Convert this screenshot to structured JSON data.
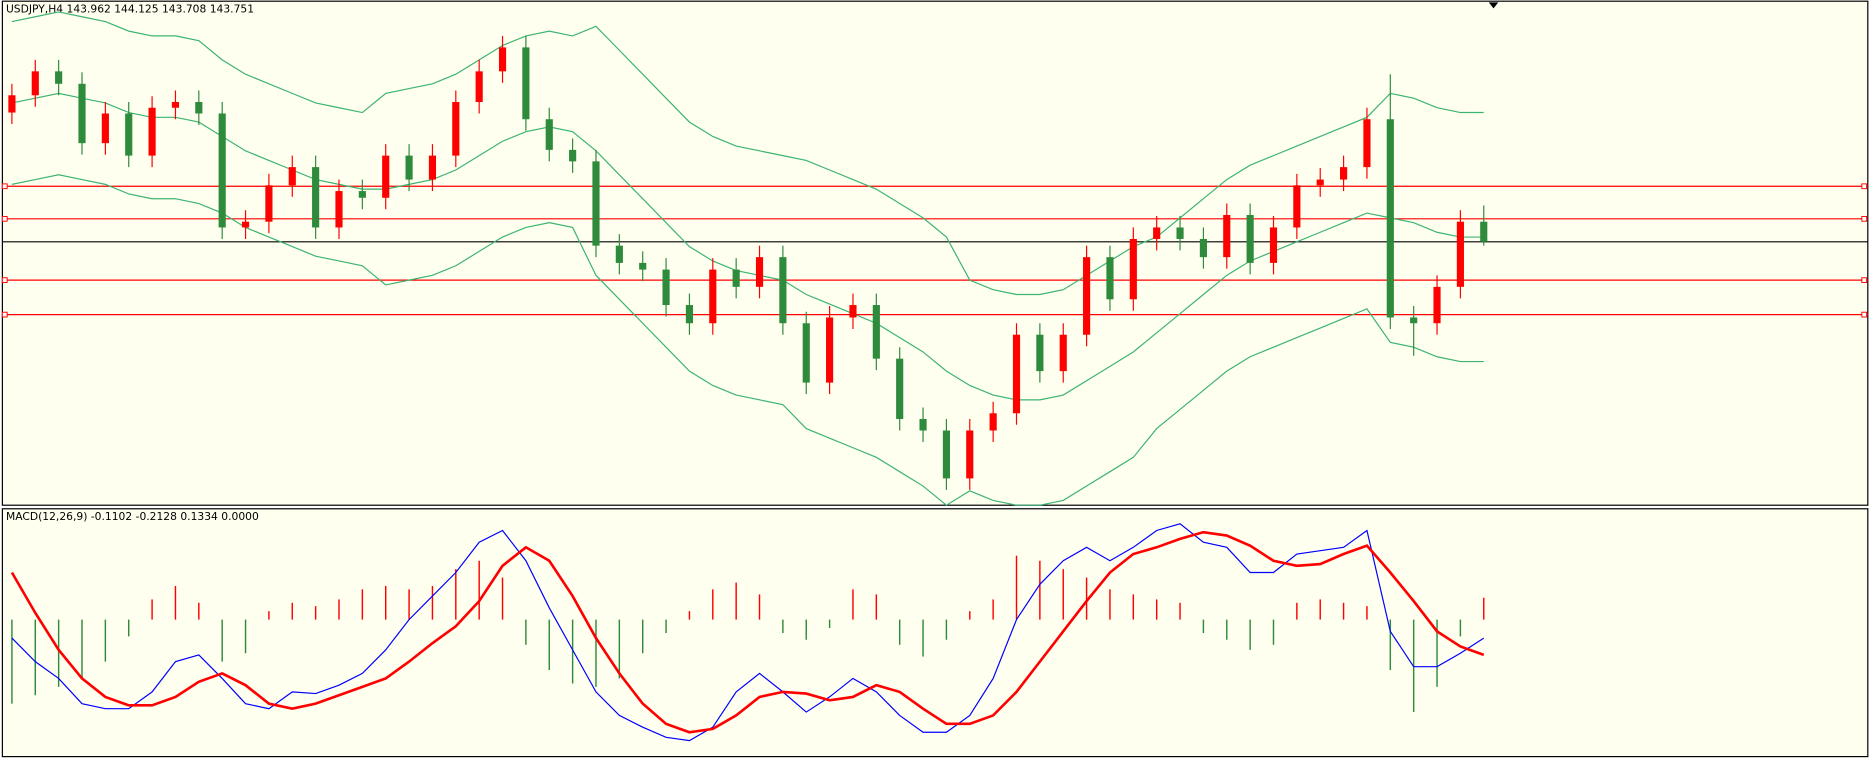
{
  "chart_data": [
    {
      "type": "candlestick",
      "title": "USDJPY,H4  143.962 144.125 143.708 143.751",
      "open": [
        145.1,
        145.28,
        145.53,
        145.4,
        144.78,
        145.09,
        144.65,
        145.15,
        145.21,
        145.09,
        143.9,
        143.96,
        144.34,
        144.53,
        143.9,
        144.28,
        144.21,
        144.65,
        144.4,
        144.65,
        145.21,
        145.53,
        145.78,
        145.03,
        144.71,
        144.59,
        143.71,
        143.53,
        143.46,
        143.09,
        142.9,
        143.46,
        143.28,
        143.59,
        142.9,
        142.28,
        142.96,
        143.09,
        142.53,
        141.9,
        141.78,
        141.28,
        141.78,
        141.96,
        142.78,
        142.4,
        142.78,
        143.59,
        143.15,
        143.78,
        143.9,
        143.78,
        143.59,
        144.03,
        143.53,
        143.9,
        144.34,
        144.4,
        144.53,
        145.03,
        142.96,
        142.9,
        143.28,
        143.96
      ],
      "high": [
        145.4,
        145.65,
        145.65,
        145.52,
        145.21,
        145.21,
        145.27,
        145.33,
        145.33,
        145.21,
        144.08,
        144.46,
        144.65,
        144.65,
        144.4,
        144.4,
        144.77,
        144.77,
        144.77,
        145.33,
        145.65,
        145.9,
        145.9,
        145.15,
        144.83,
        144.71,
        143.83,
        143.65,
        143.58,
        143.21,
        143.58,
        143.58,
        143.71,
        143.71,
        143.02,
        143.08,
        143.21,
        143.21,
        142.65,
        142.02,
        141.9,
        141.9,
        142.08,
        142.9,
        142.9,
        142.9,
        143.71,
        143.71,
        143.9,
        144.02,
        144.02,
        143.9,
        144.15,
        144.15,
        144.02,
        144.46,
        144.52,
        144.65,
        145.15,
        145.5,
        143.08,
        143.4,
        144.08,
        144.13
      ],
      "low": [
        144.98,
        145.16,
        145.28,
        144.66,
        144.66,
        144.53,
        144.53,
        145.03,
        144.97,
        143.78,
        143.78,
        143.84,
        144.22,
        143.78,
        143.78,
        144.09,
        144.09,
        144.28,
        144.28,
        144.53,
        145.09,
        145.41,
        144.91,
        144.59,
        144.47,
        143.59,
        143.41,
        143.34,
        142.97,
        142.78,
        142.78,
        143.16,
        143.16,
        142.78,
        142.16,
        142.16,
        142.84,
        142.41,
        141.78,
        141.66,
        141.16,
        141.16,
        141.66,
        141.84,
        142.28,
        142.28,
        142.66,
        143.03,
        143.03,
        143.66,
        143.66,
        143.47,
        143.47,
        143.41,
        143.41,
        143.78,
        144.22,
        144.28,
        144.41,
        142.84,
        142.56,
        142.78,
        143.16,
        143.71
      ],
      "close": [
        145.28,
        145.53,
        145.4,
        144.78,
        145.09,
        144.65,
        145.15,
        145.21,
        145.09,
        143.9,
        143.96,
        144.34,
        144.53,
        143.9,
        144.28,
        144.21,
        144.65,
        144.4,
        144.65,
        145.21,
        145.53,
        145.78,
        145.03,
        144.71,
        144.59,
        143.71,
        143.53,
        143.46,
        143.09,
        142.9,
        143.46,
        143.28,
        143.59,
        142.9,
        142.28,
        142.96,
        143.09,
        142.53,
        141.9,
        141.78,
        141.28,
        141.78,
        141.96,
        142.78,
        142.4,
        142.78,
        143.59,
        143.15,
        143.78,
        143.9,
        143.78,
        143.59,
        144.03,
        143.53,
        143.9,
        144.34,
        144.4,
        144.53,
        145.03,
        142.96,
        142.9,
        143.28,
        143.96,
        143.75
      ],
      "bands": {
        "upper": [
          146.05,
          146.1,
          146.15,
          146.1,
          146.05,
          145.95,
          145.9,
          145.9,
          145.85,
          145.65,
          145.5,
          145.4,
          145.3,
          145.2,
          145.15,
          145.1,
          145.3,
          145.35,
          145.4,
          145.5,
          145.65,
          145.8,
          145.9,
          145.95,
          145.9,
          146.0,
          145.75,
          145.5,
          145.25,
          145.0,
          144.85,
          144.75,
          144.7,
          144.65,
          144.6,
          144.5,
          144.4,
          144.3,
          144.15,
          144.0,
          143.8,
          143.35,
          143.25,
          143.2,
          143.2,
          143.25,
          143.4,
          143.55,
          143.7,
          143.8,
          144.0,
          144.2,
          144.4,
          144.55,
          144.65,
          144.75,
          144.85,
          144.95,
          145.05,
          145.3,
          145.25,
          145.15,
          145.1,
          145.1
        ],
        "middle": [
          145.2,
          145.25,
          145.3,
          145.25,
          145.2,
          145.1,
          145.05,
          145.05,
          145.0,
          144.85,
          144.7,
          144.6,
          144.5,
          144.4,
          144.35,
          144.3,
          144.3,
          144.35,
          144.4,
          144.5,
          144.65,
          144.8,
          144.9,
          144.95,
          144.9,
          144.7,
          144.45,
          144.2,
          143.95,
          143.7,
          143.55,
          143.45,
          143.4,
          143.35,
          143.2,
          143.1,
          143.0,
          142.9,
          142.75,
          142.6,
          142.4,
          142.25,
          142.15,
          142.1,
          142.1,
          142.15,
          142.3,
          142.45,
          142.6,
          142.8,
          143.0,
          143.2,
          143.4,
          143.55,
          143.65,
          143.75,
          143.85,
          143.95,
          144.05,
          144.0,
          143.95,
          143.85,
          143.8,
          143.8
        ],
        "lower": [
          144.35,
          144.4,
          144.45,
          144.4,
          144.35,
          144.25,
          144.2,
          144.2,
          144.15,
          144.05,
          143.9,
          143.8,
          143.7,
          143.6,
          143.55,
          143.5,
          143.3,
          143.35,
          143.4,
          143.5,
          143.65,
          143.8,
          143.9,
          143.95,
          143.9,
          143.4,
          143.15,
          142.9,
          142.65,
          142.4,
          142.25,
          142.15,
          142.1,
          142.05,
          141.8,
          141.7,
          141.6,
          141.5,
          141.35,
          141.2,
          141.0,
          141.15,
          141.05,
          141.0,
          141.0,
          141.05,
          141.2,
          141.35,
          141.5,
          141.8,
          142.0,
          142.2,
          142.4,
          142.55,
          142.65,
          142.75,
          142.85,
          142.95,
          143.05,
          142.7,
          142.65,
          142.55,
          142.5,
          142.5
        ]
      },
      "levels": [
        144.33,
        143.99,
        143.35,
        142.99
      ],
      "price_line": 143.75,
      "ylim": [
        141.0,
        146.25
      ],
      "up_color": "#ff0000",
      "down_color": "#2e8b3c",
      "band_color": "#3cb371",
      "level_color": "#ff0000",
      "price_line_color": "#000000"
    },
    {
      "type": "macd",
      "title": "MACD(12,26,9) -0.1102 -0.2128 0.1334 0.0000",
      "macd": [
        -0.11,
        -0.25,
        -0.35,
        -0.5,
        -0.53,
        -0.53,
        -0.43,
        -0.25,
        -0.21,
        -0.35,
        -0.5,
        -0.53,
        -0.43,
        -0.44,
        -0.39,
        -0.32,
        -0.18,
        0,
        0.14,
        0.28,
        0.46,
        0.53,
        0.35,
        0.07,
        -0.18,
        -0.43,
        -0.57,
        -0.64,
        -0.7,
        -0.72,
        -0.64,
        -0.43,
        -0.32,
        -0.43,
        -0.55,
        -0.46,
        -0.35,
        -0.43,
        -0.57,
        -0.67,
        -0.67,
        -0.57,
        -0.35,
        0,
        0.21,
        0.35,
        0.43,
        0.35,
        0.43,
        0.53,
        0.57,
        0.46,
        0.43,
        0.28,
        0.28,
        0.39,
        0.41,
        0.43,
        0.53,
        -0.07,
        -0.28,
        -0.28,
        -0.2,
        -0.11
      ],
      "signal": [
        0.28,
        0.04,
        -0.18,
        -0.35,
        -0.46,
        -0.51,
        -0.51,
        -0.46,
        -0.37,
        -0.32,
        -0.39,
        -0.5,
        -0.53,
        -0.5,
        -0.45,
        -0.4,
        -0.35,
        -0.25,
        -0.14,
        -0.04,
        0.11,
        0.32,
        0.43,
        0.35,
        0.14,
        -0.11,
        -0.32,
        -0.5,
        -0.62,
        -0.67,
        -0.65,
        -0.57,
        -0.46,
        -0.43,
        -0.44,
        -0.48,
        -0.46,
        -0.39,
        -0.43,
        -0.53,
        -0.62,
        -0.62,
        -0.57,
        -0.43,
        -0.25,
        -0.07,
        0.11,
        0.28,
        0.39,
        0.43,
        0.48,
        0.52,
        0.5,
        0.44,
        0.35,
        0.32,
        0.33,
        0.39,
        0.44,
        0.28,
        0.11,
        -0.07,
        -0.16,
        -0.21
      ],
      "histogram": [
        -0.5,
        -0.45,
        -0.4,
        -0.35,
        -0.25,
        -0.1,
        0.12,
        0.2,
        0.1,
        -0.25,
        -0.2,
        0.05,
        0.1,
        0.08,
        0.12,
        0.18,
        0.2,
        0.18,
        0.2,
        0.3,
        0.35,
        0.25,
        -0.15,
        -0.3,
        -0.38,
        -0.4,
        -0.35,
        -0.2,
        -0.08,
        0.05,
        0.18,
        0.22,
        0.15,
        -0.08,
        -0.12,
        -0.05,
        0.18,
        0.15,
        -0.15,
        -0.22,
        -0.12,
        0.05,
        0.12,
        0.38,
        0.35,
        0.3,
        0.25,
        0.18,
        0.15,
        0.12,
        0.1,
        -0.08,
        -0.12,
        -0.18,
        -0.15,
        0.1,
        0.12,
        0.1,
        0.08,
        -0.3,
        -0.55,
        -0.4,
        -0.1,
        0.13
      ],
      "ylim": [
        -0.815,
        0.652
      ],
      "macd_color": "#0000ff",
      "signal_color": "#ff0000",
      "hist_up_color": "#ff0000",
      "hist_down_color": "#2e8b3c"
    }
  ]
}
